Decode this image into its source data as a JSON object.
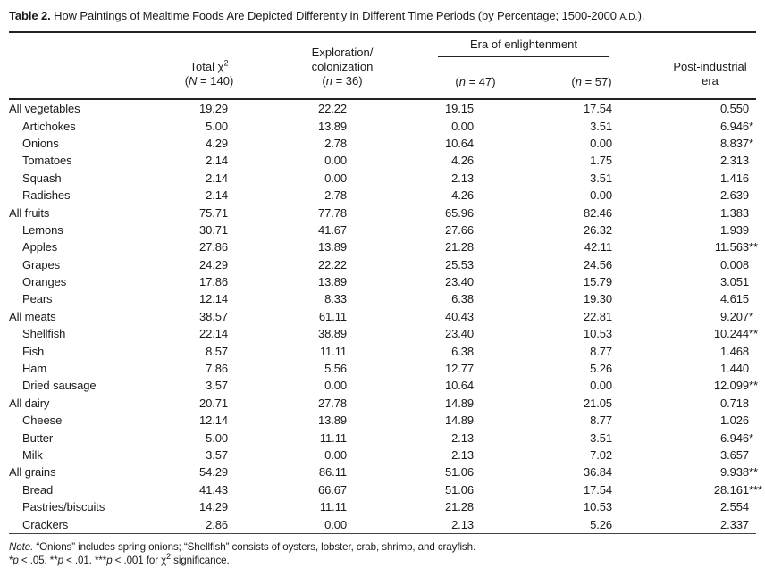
{
  "title": {
    "label": "Table 2.",
    "text_pre": " How Paintings of Mealtime Foods Are Depicted Differently in Different Time Periods (by Percentage; 1500-2000 ",
    "ad": "A.D.",
    "text_post": ")."
  },
  "header": {
    "total": {
      "pre": "Total ",
      "chi": "χ",
      "sup": "2",
      "n_open": "(",
      "n_var": "N",
      "n_rest": " = 140)"
    },
    "exploration": {
      "line1": "Exploration/",
      "line2": "colonization",
      "n_open": "(",
      "n_var": "n",
      "n_rest": " = 36)"
    },
    "era": {
      "title": "Era of enlightenment",
      "n1_open": "(",
      "n1_var": "n",
      "n1_rest": " = 47)",
      "n2_open": "(",
      "n2_var": "n",
      "n2_rest": " = 57)"
    },
    "post": {
      "line1": "Post-industrial",
      "line2": "era"
    }
  },
  "rows": [
    {
      "label": "All vegetables",
      "indent": false,
      "values": [
        "19.29",
        "22.22",
        "19.15",
        "17.54"
      ],
      "chi": "0.550",
      "stars": ""
    },
    {
      "label": "Artichokes",
      "indent": true,
      "values": [
        "5.00",
        "13.89",
        "0.00",
        "3.51"
      ],
      "chi": "6.946",
      "stars": "*"
    },
    {
      "label": "Onions",
      "indent": true,
      "values": [
        "4.29",
        "2.78",
        "10.64",
        "0.00"
      ],
      "chi": "8.837",
      "stars": "*"
    },
    {
      "label": "Tomatoes",
      "indent": true,
      "values": [
        "2.14",
        "0.00",
        "4.26",
        "1.75"
      ],
      "chi": "2.313",
      "stars": ""
    },
    {
      "label": "Squash",
      "indent": true,
      "values": [
        "2.14",
        "0.00",
        "2.13",
        "3.51"
      ],
      "chi": "1.416",
      "stars": ""
    },
    {
      "label": "Radishes",
      "indent": true,
      "values": [
        "2.14",
        "2.78",
        "4.26",
        "0.00"
      ],
      "chi": "2.639",
      "stars": ""
    },
    {
      "label": "All fruits",
      "indent": false,
      "values": [
        "75.71",
        "77.78",
        "65.96",
        "82.46"
      ],
      "chi": "1.383",
      "stars": ""
    },
    {
      "label": "Lemons",
      "indent": true,
      "values": [
        "30.71",
        "41.67",
        "27.66",
        "26.32"
      ],
      "chi": "1.939",
      "stars": ""
    },
    {
      "label": "Apples",
      "indent": true,
      "values": [
        "27.86",
        "13.89",
        "21.28",
        "42.11"
      ],
      "chi": "11.563",
      "stars": "**"
    },
    {
      "label": "Grapes",
      "indent": true,
      "values": [
        "24.29",
        "22.22",
        "25.53",
        "24.56"
      ],
      "chi": "0.008",
      "stars": ""
    },
    {
      "label": "Oranges",
      "indent": true,
      "values": [
        "17.86",
        "13.89",
        "23.40",
        "15.79"
      ],
      "chi": "3.051",
      "stars": ""
    },
    {
      "label": "Pears",
      "indent": true,
      "values": [
        "12.14",
        "8.33",
        "6.38",
        "19.30"
      ],
      "chi": "4.615",
      "stars": ""
    },
    {
      "label": "All meats",
      "indent": false,
      "values": [
        "38.57",
        "61.11",
        "40.43",
        "22.81"
      ],
      "chi": "9.207",
      "stars": "*"
    },
    {
      "label": "Shellfish",
      "indent": true,
      "values": [
        "22.14",
        "38.89",
        "23.40",
        "10.53"
      ],
      "chi": "10.244",
      "stars": "**"
    },
    {
      "label": "Fish",
      "indent": true,
      "values": [
        "8.57",
        "11.11",
        "6.38",
        "8.77"
      ],
      "chi": "1.468",
      "stars": ""
    },
    {
      "label": "Ham",
      "indent": true,
      "values": [
        "7.86",
        "5.56",
        "12.77",
        "5.26"
      ],
      "chi": "1.440",
      "stars": ""
    },
    {
      "label": "Dried sausage",
      "indent": true,
      "values": [
        "3.57",
        "0.00",
        "10.64",
        "0.00"
      ],
      "chi": "12.099",
      "stars": "**"
    },
    {
      "label": "All dairy",
      "indent": false,
      "values": [
        "20.71",
        "27.78",
        "14.89",
        "21.05"
      ],
      "chi": "0.718",
      "stars": ""
    },
    {
      "label": "Cheese",
      "indent": true,
      "values": [
        "12.14",
        "13.89",
        "14.89",
        "8.77"
      ],
      "chi": "1.026",
      "stars": ""
    },
    {
      "label": "Butter",
      "indent": true,
      "values": [
        "5.00",
        "11.11",
        "2.13",
        "3.51"
      ],
      "chi": "6.946",
      "stars": "*"
    },
    {
      "label": "Milk",
      "indent": true,
      "values": [
        "3.57",
        "0.00",
        "2.13",
        "7.02"
      ],
      "chi": "3.657",
      "stars": ""
    },
    {
      "label": "All grains",
      "indent": false,
      "values": [
        "54.29",
        "86.11",
        "51.06",
        "36.84"
      ],
      "chi": "9.938",
      "stars": "**"
    },
    {
      "label": "Bread",
      "indent": true,
      "values": [
        "41.43",
        "66.67",
        "51.06",
        "17.54"
      ],
      "chi": "28.161",
      "stars": "***"
    },
    {
      "label": "Pastries/biscuits",
      "indent": true,
      "values": [
        "14.29",
        "11.11",
        "21.28",
        "10.53"
      ],
      "chi": "2.554",
      "stars": ""
    },
    {
      "label": "Crackers",
      "indent": true,
      "values": [
        "2.86",
        "0.00",
        "2.13",
        "5.26"
      ],
      "chi": "2.337",
      "stars": ""
    }
  ],
  "footnotes": {
    "note_label": "Note.",
    "note_text": " “Onions” includes spring onions; “Shellfish” consists of oysters, lobster, crab, shrimp, and crayfish.",
    "sig": {
      "s1": "*",
      "p1": "p",
      "r1": " < .05. ",
      "s2": "**",
      "p2": "p",
      "r2": " < .01. ",
      "s3": "***",
      "p3": "p",
      "r3": " < .001 for ",
      "chi": "χ",
      "sup": "2",
      "r4": " significance."
    }
  }
}
